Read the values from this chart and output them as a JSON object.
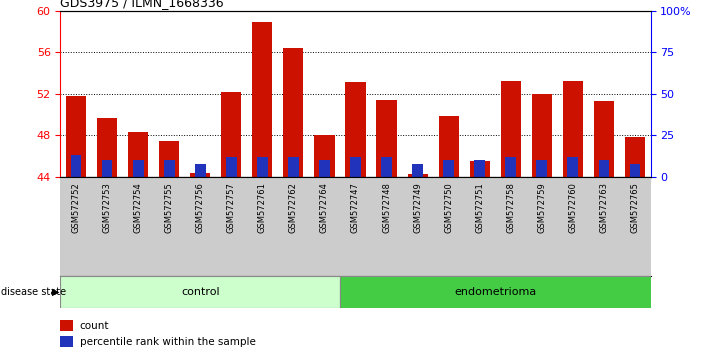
{
  "title": "GDS3975 / ILMN_1668336",
  "samples": [
    "GSM572752",
    "GSM572753",
    "GSM572754",
    "GSM572755",
    "GSM572756",
    "GSM572757",
    "GSM572761",
    "GSM572762",
    "GSM572764",
    "GSM572747",
    "GSM572748",
    "GSM572749",
    "GSM572750",
    "GSM572751",
    "GSM572758",
    "GSM572759",
    "GSM572760",
    "GSM572763",
    "GSM572765"
  ],
  "count_values": [
    51.8,
    49.7,
    48.3,
    47.5,
    44.4,
    52.2,
    58.9,
    56.4,
    48.0,
    53.1,
    51.4,
    44.3,
    49.9,
    45.5,
    53.2,
    52.0,
    53.2,
    51.3,
    47.8
  ],
  "percentile_values": [
    13,
    10,
    10,
    10,
    8,
    12,
    12,
    12,
    10,
    12,
    12,
    8,
    10,
    10,
    12,
    10,
    12,
    10,
    8
  ],
  "ctrl_count": 9,
  "endo_count": 10,
  "bar_color": "#cc1100",
  "percentile_color": "#2233bb",
  "control_color_light": "#ccffcc",
  "endometrioma_color": "#44cc44",
  "tick_bg_color": "#cccccc",
  "ymin": 44,
  "ymax": 60,
  "yticks_left": [
    44,
    48,
    52,
    56,
    60
  ],
  "yticks_right": [
    0,
    25,
    50,
    75,
    100
  ],
  "grid_lines": [
    48,
    52,
    56
  ],
  "bar_width": 0.65,
  "pct_bar_width": 0.35
}
